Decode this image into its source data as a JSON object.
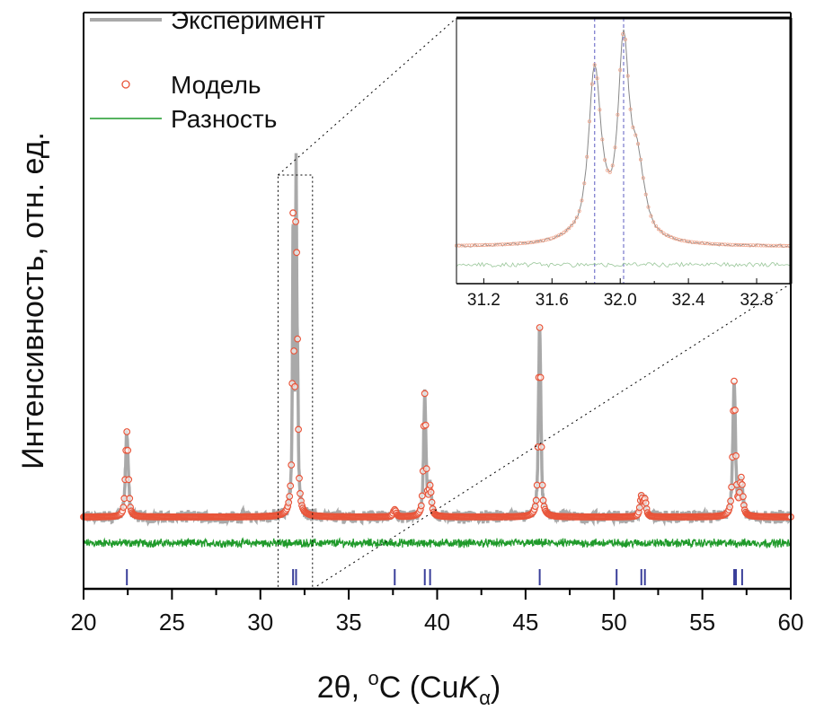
{
  "chart_data": {
    "type": "line",
    "title": "",
    "xlabel": "2θ, °C (CuKα)",
    "xlabel_parts": {
      "main": "2θ, ",
      "sup": "o",
      "unit": "C (Cu",
      "k": "K",
      "sub": "α",
      "close": ")"
    },
    "ylabel": "Интенсивность, отн. ед.",
    "xlim": [
      20,
      60
    ],
    "ylim": [
      -80,
      562
    ],
    "xticks": [
      20,
      25,
      30,
      35,
      40,
      45,
      50,
      55,
      60
    ],
    "grid": false,
    "legend": {
      "placement": "top-left",
      "entries": [
        {
          "label": "Эксперимент",
          "style": "line",
          "color": "#a9a9a9"
        },
        {
          "label": "Модель",
          "style": "open-circle",
          "color": "#e8553a"
        },
        {
          "label": "Разность",
          "style": "line",
          "color": "#1f9a2a"
        }
      ]
    },
    "baseline": 0,
    "difference_offset": -29,
    "peaks": [
      {
        "position": 22.45,
        "height": 95,
        "fwhm": 0.18
      },
      {
        "position": 31.85,
        "height": 275,
        "fwhm": 0.08
      },
      {
        "position": 32.02,
        "height": 310,
        "fwhm": 0.07
      },
      {
        "position": 32.1,
        "height": 120,
        "fwhm": 0.09
      },
      {
        "position": 31.95,
        "height": 70,
        "fwhm": 0.35
      },
      {
        "position": 37.6,
        "height": 8,
        "fwhm": 0.2
      },
      {
        "position": 39.3,
        "height": 136,
        "fwhm": 0.16
      },
      {
        "position": 39.6,
        "height": 30,
        "fwhm": 0.18
      },
      {
        "position": 45.8,
        "height": 211,
        "fwhm": 0.16
      },
      {
        "position": 51.55,
        "height": 22,
        "fwhm": 0.18
      },
      {
        "position": 51.75,
        "height": 18,
        "fwhm": 0.18
      },
      {
        "position": 56.8,
        "height": 150,
        "fwhm": 0.18
      },
      {
        "position": 57.2,
        "height": 40,
        "fwhm": 0.2
      }
    ],
    "bragg_positions": [
      22.45,
      31.85,
      32.02,
      37.6,
      39.3,
      39.6,
      45.8,
      50.15,
      51.55,
      51.75,
      56.8,
      56.9,
      57.25
    ],
    "zoom_region": [
      31.0,
      32.95
    ],
    "inset": {
      "xlim": [
        31.04,
        33.0
      ],
      "xticks": [
        "31.2",
        "31.6",
        "32.0",
        "32.4",
        "32.8"
      ],
      "reference_lines": [
        31.85,
        32.02
      ]
    },
    "colors": {
      "experiment": "#a9a9a9",
      "model": "#e8553a",
      "difference": "#1f9a2a",
      "bragg": "#3a3f9a",
      "reference": "#7777cc"
    }
  }
}
